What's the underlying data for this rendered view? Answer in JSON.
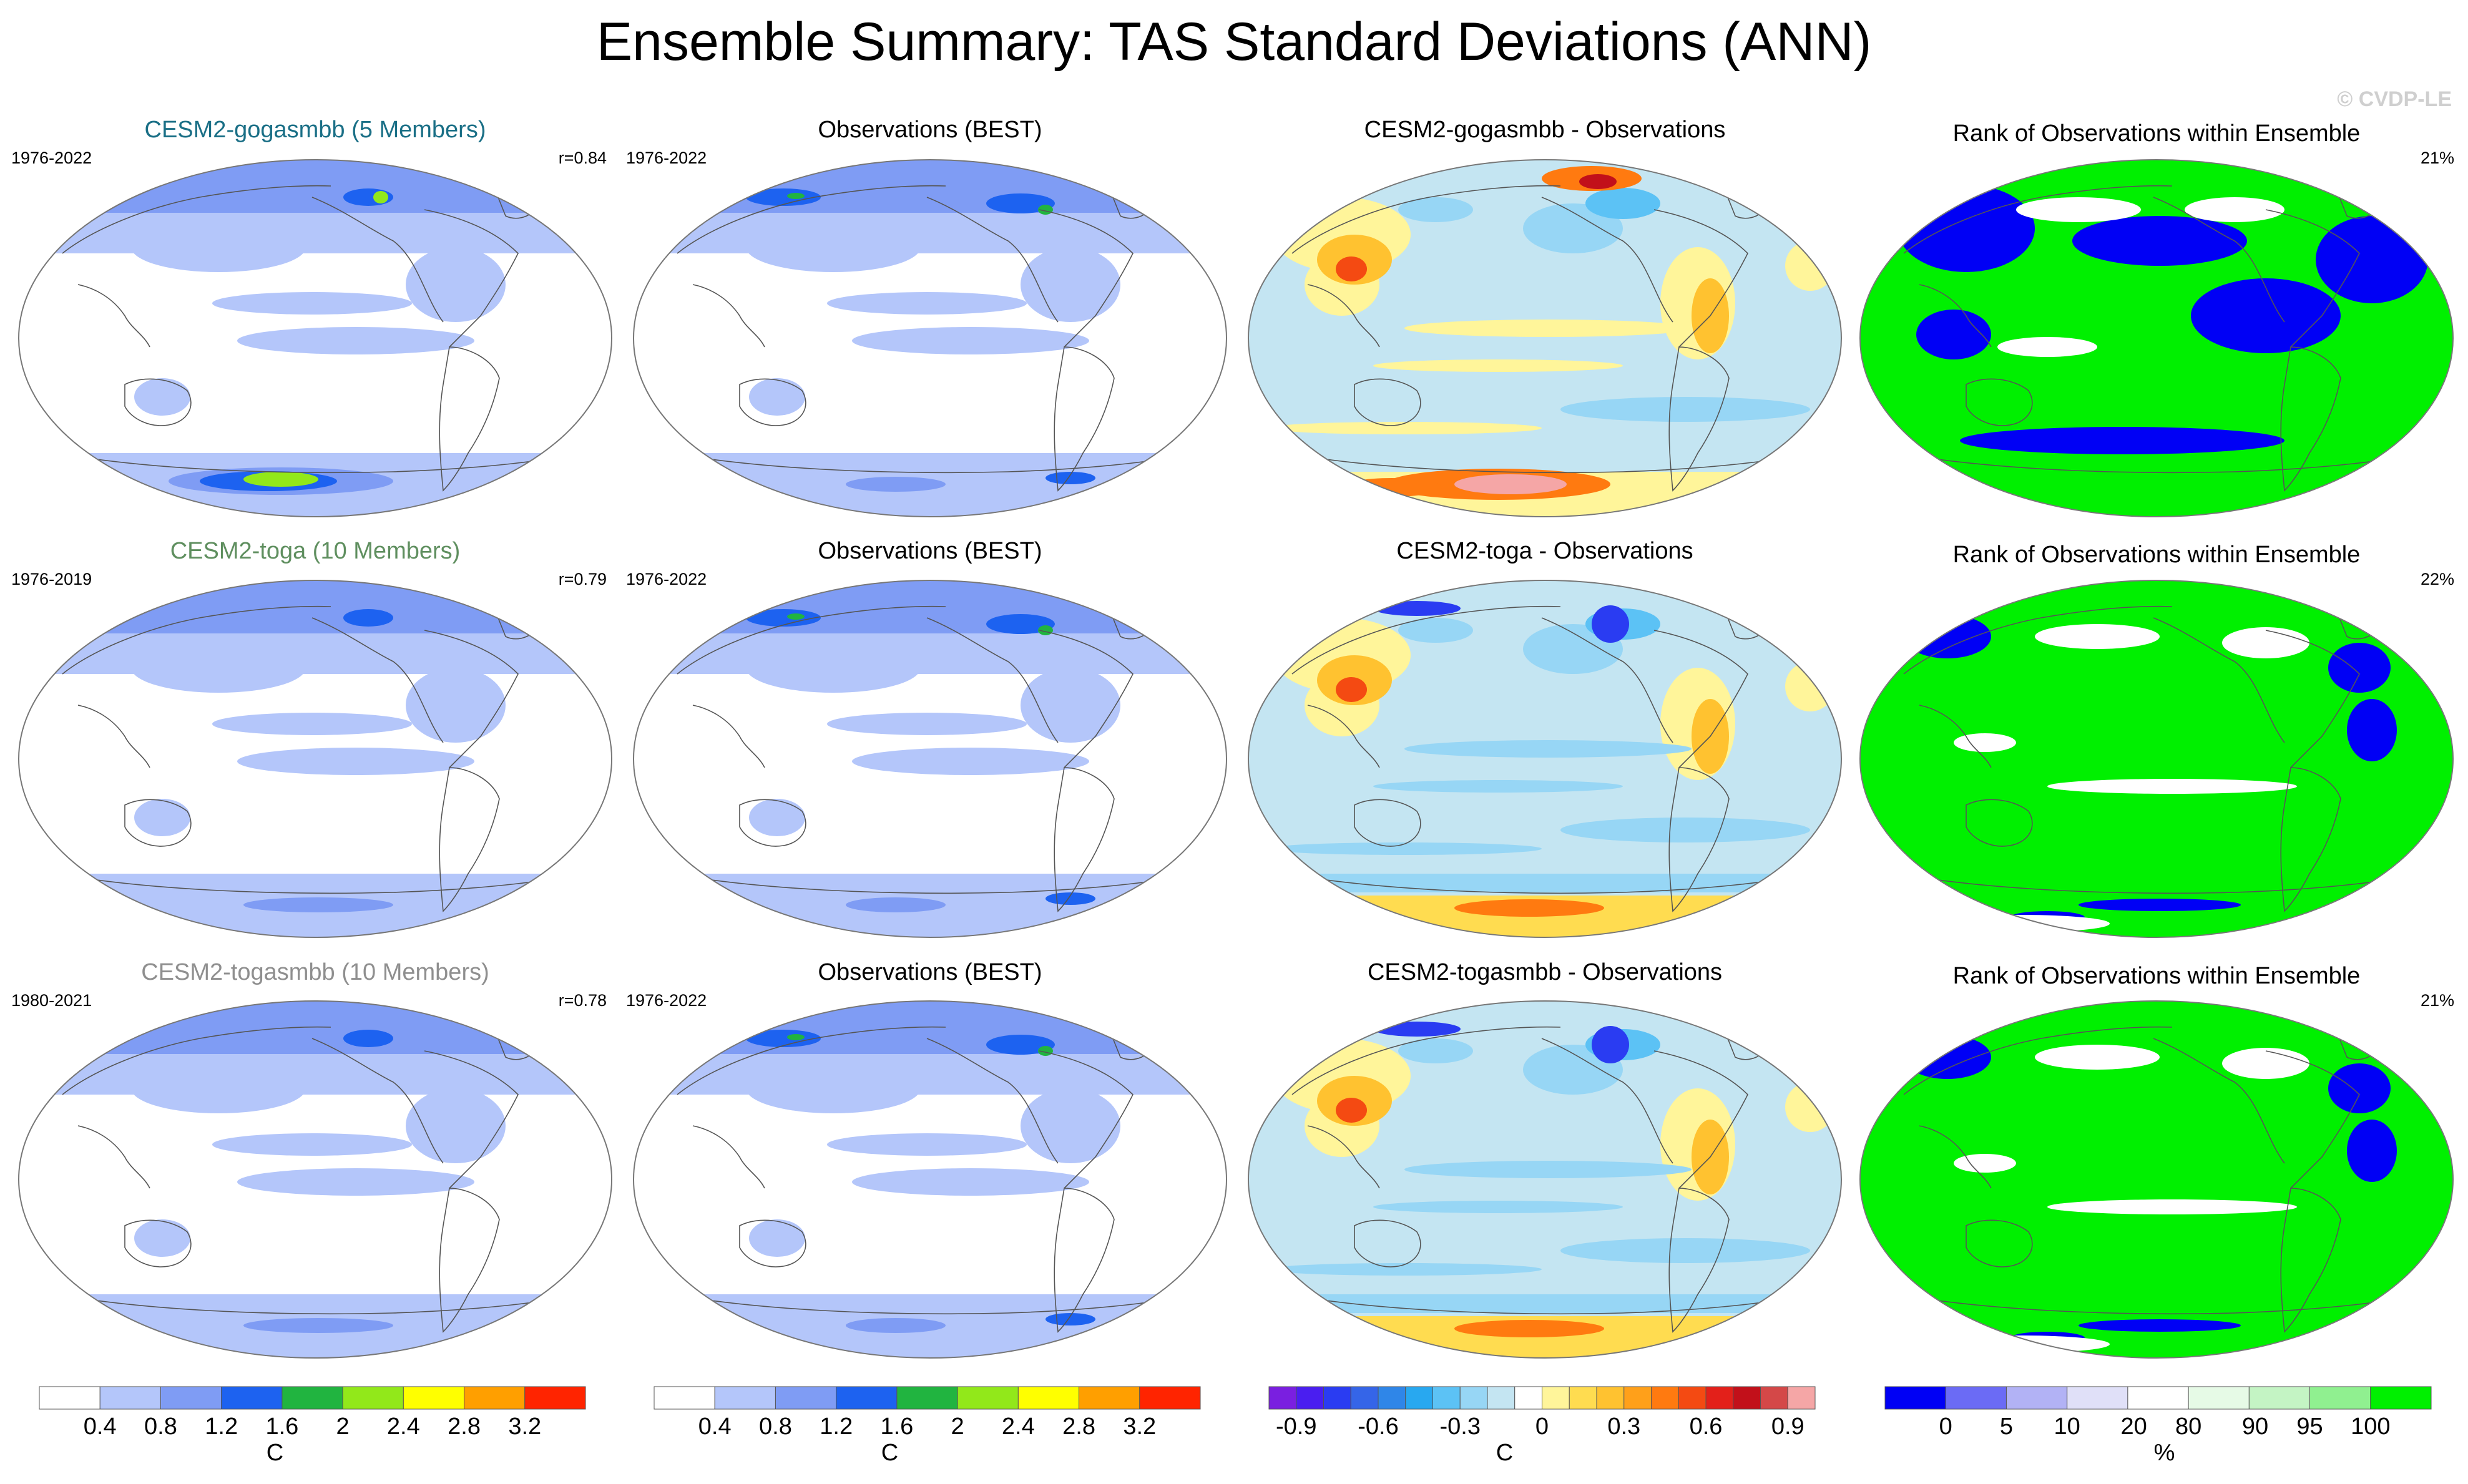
{
  "title": "Ensemble Summary: TAS Standard Deviations (ANN)",
  "watermark": "© CVDP-LE",
  "chart_data": {
    "type": "heatmap",
    "projection": "Robinson (Pacific-centered)",
    "columns": [
      "ensemble-std",
      "observations-std",
      "difference",
      "rank"
    ],
    "rows": [
      {
        "model": {
          "title": "CESM2-gogasmbb (5 Members)",
          "title_color": "#1a6f86",
          "period": "1976-2022",
          "r": "r=0.84"
        },
        "obs": {
          "title": "Observations (BEST)",
          "period": "1976-2022"
        },
        "diff": {
          "title": "CESM2-gogasmbb - Observations"
        },
        "rank": {
          "title": "Rank of Observations within Ensemble",
          "pct": "21%"
        }
      },
      {
        "model": {
          "title": "CESM2-toga (10 Members)",
          "title_color": "#5f8f5f",
          "period": "1976-2019",
          "r": "r=0.79"
        },
        "obs": {
          "title": "Observations (BEST)",
          "period": "1976-2022"
        },
        "diff": {
          "title": "CESM2-toga - Observations"
        },
        "rank": {
          "title": "Rank of Observations within Ensemble",
          "pct": "22%"
        }
      },
      {
        "model": {
          "title": "CESM2-togasmbb (10 Members)",
          "title_color": "#8f8f8f",
          "period": "1980-2021",
          "r": "r=0.78"
        },
        "obs": {
          "title": "Observations (BEST)",
          "period": "1976-2022"
        },
        "diff": {
          "title": "CESM2-togasmbb - Observations"
        },
        "rank": {
          "title": "Rank of Observations within Ensemble",
          "pct": "21%"
        }
      }
    ],
    "colorbars": [
      {
        "name": "std",
        "unit": "C",
        "levels": [
          "0.4",
          "0.8",
          "1.2",
          "1.6",
          "2",
          "2.4",
          "2.8",
          "3.2"
        ],
        "colors": [
          "#ffffff",
          "#b4c6fa",
          "#7f9cf4",
          "#1d62f0",
          "#21b440",
          "#92e81a",
          "#ffff00",
          "#ff9f00",
          "#ff2400"
        ]
      },
      {
        "name": "std-obs",
        "unit": "C",
        "levels": [
          "0.4",
          "0.8",
          "1.2",
          "1.6",
          "2",
          "2.4",
          "2.8",
          "3.2"
        ],
        "colors": [
          "#ffffff",
          "#b4c6fa",
          "#7f9cf4",
          "#1d62f0",
          "#21b440",
          "#92e81a",
          "#ffff00",
          "#ff9f00",
          "#ff2400"
        ]
      },
      {
        "name": "difference",
        "unit": "C",
        "levels": [
          "-0.9",
          "-0.6",
          "-0.3",
          "0",
          "0.3",
          "0.6",
          "0.9"
        ],
        "colors": [
          "#7a1fe0",
          "#4a1ef0",
          "#2a3cf2",
          "#3565e8",
          "#2f86e8",
          "#28a8f0",
          "#5cc2f5",
          "#97d6f5",
          "#c4e5f2",
          "#ffffff",
          "#fff59a",
          "#ffdc50",
          "#ffc230",
          "#ffa01a",
          "#ff7a10",
          "#f44a12",
          "#e3201a",
          "#c2101a",
          "#d44848",
          "#f5a6a6"
        ]
      },
      {
        "name": "rank",
        "unit": "%",
        "levels": [
          "0",
          "5",
          "10",
          "20",
          "80",
          "90",
          "95",
          "100"
        ],
        "colors": [
          "#0000f5",
          "#6b6bf5",
          "#b2b2f5",
          "#e0e0f8",
          "#ffffff",
          "#e6fae6",
          "#c4f4c4",
          "#90f090",
          "#00f000"
        ]
      }
    ]
  }
}
